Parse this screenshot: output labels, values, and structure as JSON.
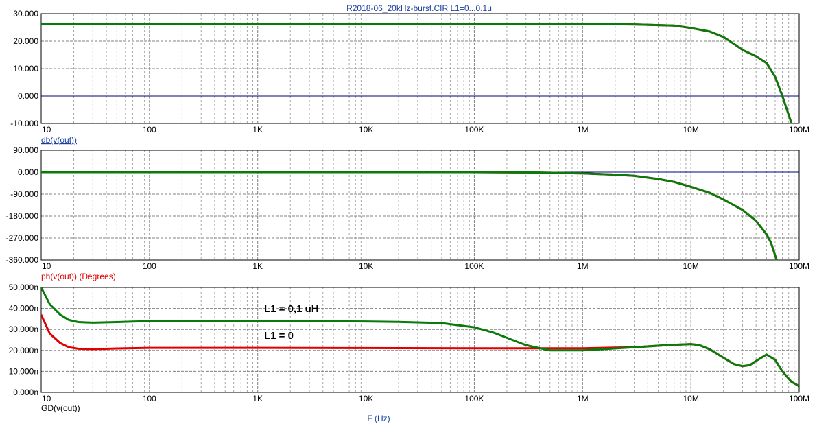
{
  "window": {
    "title": "R2018-06_20kHz-burst.CIR L1=0...0.1u",
    "xaxis_label": "F (Hz)"
  },
  "colors": {
    "red_trace": "#e00000",
    "green_trace": "#0a7a0a",
    "zero_line": "#00008b",
    "grid": "#808080",
    "title_text": "#1a3fa0",
    "label_blue": "#1a3fa0",
    "label_red": "#e00000",
    "label_black": "#000000"
  },
  "chart_data": [
    {
      "type": "line",
      "title": "R2018-06_20kHz-burst.CIR L1=0...0.1u",
      "xlabel": "F (Hz)",
      "ylabel": "db(v(out))",
      "xscale": "log",
      "xlim": [
        10,
        100000000
      ],
      "xtick_labels": [
        "10",
        "100",
        "1K",
        "10K",
        "100K",
        "1M",
        "10M",
        "100M"
      ],
      "ylim": [
        -10,
        30
      ],
      "ytick_labels": [
        "30.000",
        "20.000",
        "10.000",
        "0.000",
        "-10.000"
      ],
      "grid": true,
      "legend": "none",
      "series": [
        {
          "color": "red",
          "x": [
            10,
            100,
            1000,
            10000,
            100000,
            1000000,
            3000000,
            7000000,
            10000000,
            15000000,
            20000000,
            25000000,
            30000000,
            40000000,
            50000000,
            60000000,
            70000000,
            85000000
          ],
          "y": [
            26.2,
            26.2,
            26.2,
            26.2,
            26.2,
            26.2,
            26.1,
            25.7,
            24.8,
            23.5,
            21.5,
            19.0,
            16.8,
            14.5,
            12.0,
            7.0,
            0.0,
            -10.0
          ]
        },
        {
          "color": "green",
          "x": [
            10,
            100,
            1000,
            10000,
            100000,
            1000000,
            3000000,
            7000000,
            10000000,
            15000000,
            20000000,
            25000000,
            30000000,
            40000000,
            50000000,
            60000000,
            70000000,
            85000000
          ],
          "y": [
            26.2,
            26.2,
            26.2,
            26.2,
            26.2,
            26.2,
            26.1,
            25.7,
            24.8,
            23.5,
            21.5,
            19.0,
            16.8,
            14.5,
            12.0,
            7.0,
            0.0,
            -10.0
          ]
        }
      ]
    },
    {
      "type": "line",
      "ylabel": "ph(v(out)) (Degrees)",
      "xscale": "log",
      "xlim": [
        10,
        100000000
      ],
      "xtick_labels": [
        "10",
        "100",
        "1K",
        "10K",
        "100K",
        "1M",
        "10M",
        "100M"
      ],
      "ylim": [
        -360,
        90
      ],
      "ytick_labels": [
        "90.000",
        "0.000",
        "-90.000",
        "-180.000",
        "-270.000",
        "-360.000"
      ],
      "grid": true,
      "legend": "none",
      "series": [
        {
          "color": "red",
          "x": [
            10,
            100,
            1000,
            10000,
            100000,
            300000,
            1000000,
            2000000,
            3000000,
            5000000,
            7000000,
            10000000,
            15000000,
            20000000,
            30000000,
            40000000,
            50000000,
            55000000,
            62000000
          ],
          "y": [
            0,
            0,
            0,
            0,
            0,
            -1,
            -5,
            -10,
            -15,
            -28,
            -40,
            -60,
            -85,
            -112,
            -155,
            -200,
            -255,
            -290,
            -360
          ]
        },
        {
          "color": "green",
          "x": [
            10,
            100,
            1000,
            10000,
            100000,
            300000,
            1000000,
            2000000,
            3000000,
            5000000,
            7000000,
            10000000,
            15000000,
            20000000,
            30000000,
            40000000,
            50000000,
            55000000,
            62000000
          ],
          "y": [
            0,
            0,
            0,
            0,
            0,
            -1,
            -5,
            -10,
            -15,
            -28,
            -40,
            -60,
            -85,
            -112,
            -155,
            -200,
            -255,
            -290,
            -360
          ]
        }
      ]
    },
    {
      "type": "line",
      "ylabel": "GD(v(out))",
      "xscale": "log",
      "xlim": [
        10,
        100000000
      ],
      "xtick_labels": [
        "10",
        "100",
        "1K",
        "10K",
        "100K",
        "1M",
        "10M",
        "100M"
      ],
      "ylim": [
        0,
        50
      ],
      "ytick_labels": [
        "50.000n",
        "40.000n",
        "30.000n",
        "20.000n",
        "10.000n",
        "0.000n"
      ],
      "grid": true,
      "legend": "none",
      "annotations": [
        "L1 = 0,1 uH",
        "L1 = 0"
      ],
      "series": [
        {
          "name": "L1 = 0",
          "color": "red",
          "x": [
            10,
            12,
            15,
            18,
            22,
            30,
            50,
            100,
            1000,
            10000,
            100000,
            300000,
            1000000,
            3000000,
            6000000,
            10000000,
            12000000,
            15000000,
            20000000,
            25000000,
            30000000,
            35000000,
            40000000,
            50000000,
            60000000,
            70000000,
            85000000,
            100000000
          ],
          "y": [
            37,
            28,
            23.5,
            21.5,
            20.8,
            20.6,
            20.9,
            21.2,
            21.2,
            21.1,
            21.0,
            21.0,
            21.0,
            21.5,
            22.5,
            23.0,
            22.5,
            20.5,
            16.5,
            13.5,
            12.5,
            13.0,
            15.0,
            18.0,
            15.5,
            10.0,
            5.0,
            3.0
          ]
        },
        {
          "name": "L1 = 0,1 uH",
          "color": "green",
          "x": [
            10,
            12,
            15,
            18,
            22,
            30,
            50,
            100,
            1000,
            10000,
            20000,
            50000,
            100000,
            150000,
            200000,
            300000,
            500000,
            1000000,
            3000000,
            6000000,
            10000000,
            12000000,
            15000000,
            20000000,
            25000000,
            30000000,
            35000000,
            40000000,
            50000000,
            60000000,
            70000000,
            85000000,
            100000000
          ],
          "y": [
            50,
            42,
            37,
            34.5,
            33.5,
            33.2,
            33.5,
            34.0,
            34.0,
            33.8,
            33.6,
            33.0,
            31.0,
            28.5,
            26.0,
            22.5,
            20.0,
            20.0,
            21.5,
            22.5,
            23.0,
            22.5,
            20.5,
            16.5,
            13.5,
            12.5,
            13.0,
            15.0,
            18.0,
            15.5,
            10.0,
            5.0,
            3.0
          ]
        }
      ]
    }
  ]
}
